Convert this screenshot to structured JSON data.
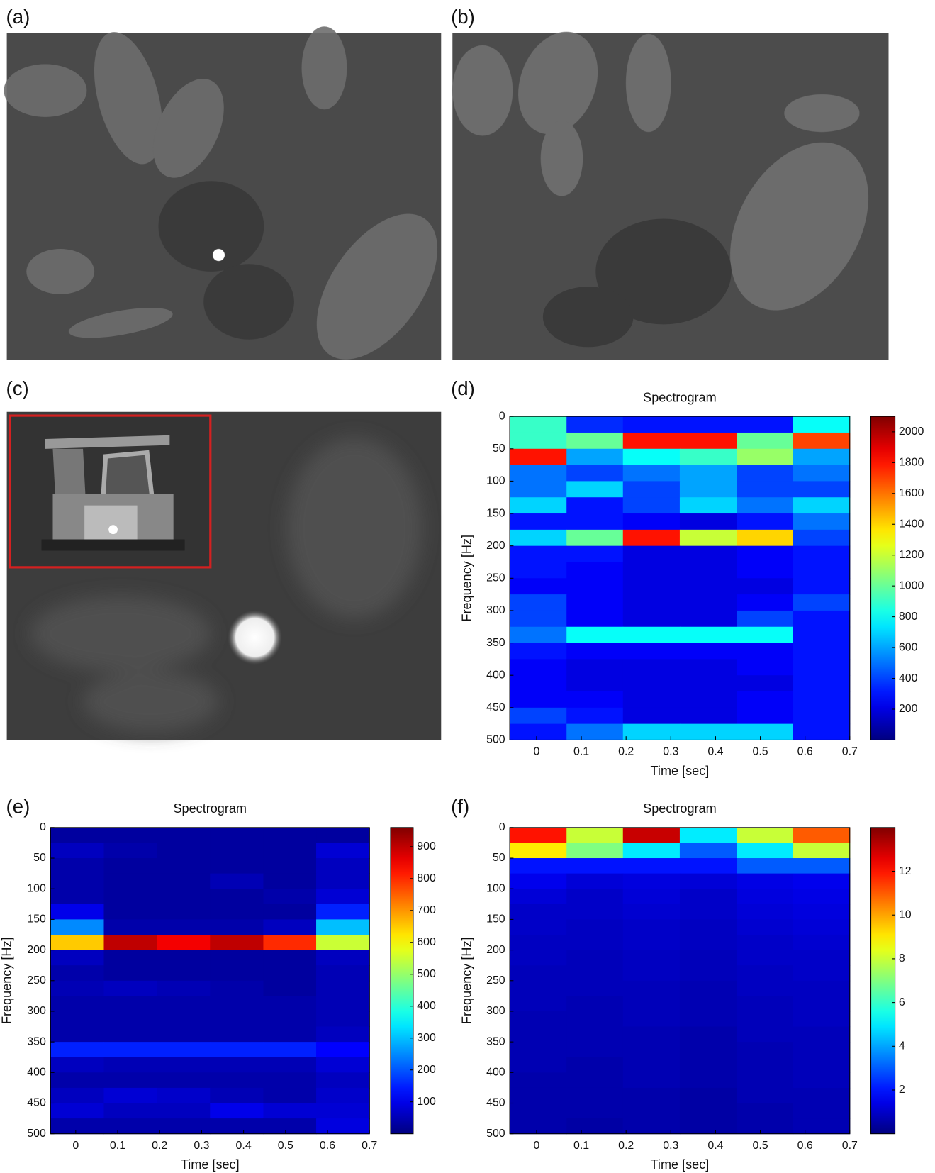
{
  "panels": [
    {
      "label": "(a)"
    },
    {
      "label": "(b)"
    },
    {
      "label": "(c)"
    }
  ],
  "chart_data": [
    {
      "type": "heatmap",
      "panel_label": "(d)",
      "title": "Spectrogram",
      "xlabel": "Time [sec]",
      "ylabel": "Frequency [Hz]",
      "x_bins": [
        -0.06,
        0.067,
        0.193,
        0.32,
        0.447,
        0.573,
        0.7
      ],
      "y_bins": [
        0,
        25,
        50,
        75,
        100,
        125,
        150,
        175,
        200,
        225,
        250,
        275,
        300,
        325,
        350,
        375,
        400,
        425,
        450,
        475,
        500
      ],
      "z": [
        [
          900,
          350,
          300,
          300,
          300,
          800
        ],
        [
          900,
          1000,
          1800,
          1800,
          1000,
          1700
        ],
        [
          1800,
          600,
          800,
          900,
          1100,
          600
        ],
        [
          500,
          400,
          500,
          600,
          400,
          500
        ],
        [
          500,
          700,
          400,
          600,
          400,
          400
        ],
        [
          700,
          300,
          400,
          700,
          500,
          700
        ],
        [
          300,
          300,
          250,
          200,
          300,
          500
        ],
        [
          700,
          1000,
          1800,
          1200,
          1400,
          400
        ],
        [
          300,
          300,
          200,
          200,
          250,
          300
        ],
        [
          300,
          250,
          200,
          200,
          250,
          300
        ],
        [
          250,
          250,
          200,
          200,
          200,
          300
        ],
        [
          400,
          250,
          200,
          200,
          250,
          400
        ],
        [
          400,
          250,
          200,
          200,
          400,
          300
        ],
        [
          500,
          800,
          800,
          800,
          800,
          300
        ],
        [
          300,
          250,
          250,
          250,
          250,
          300
        ],
        [
          250,
          200,
          200,
          200,
          250,
          300
        ],
        [
          250,
          200,
          200,
          200,
          200,
          300
        ],
        [
          250,
          250,
          200,
          200,
          250,
          300
        ],
        [
          400,
          300,
          200,
          200,
          250,
          300
        ],
        [
          300,
          500,
          700,
          700,
          700,
          300
        ]
      ],
      "xlim": [
        -0.06,
        0.7
      ],
      "ylim": [
        0,
        500
      ],
      "yaxis_reversed": true,
      "xticks": [
        0,
        0.1,
        0.2,
        0.3,
        0.4,
        0.5,
        0.6,
        0.7
      ],
      "yticks": [
        0,
        50,
        100,
        150,
        200,
        250,
        300,
        350,
        400,
        450,
        500
      ],
      "colormap": "jet",
      "zlim": [
        0,
        2100
      ],
      "colorbar_ticks": [
        200,
        400,
        600,
        800,
        1000,
        1200,
        1400,
        1600,
        1800,
        2000
      ]
    },
    {
      "type": "heatmap",
      "panel_label": "(e)",
      "title": "Spectrogram",
      "xlabel": "Time [sec]",
      "ylabel": "Frequency [Hz]",
      "x_bins": [
        -0.06,
        0.067,
        0.193,
        0.32,
        0.447,
        0.573,
        0.7
      ],
      "y_bins": [
        0,
        25,
        50,
        75,
        100,
        125,
        150,
        175,
        200,
        225,
        250,
        275,
        300,
        325,
        350,
        375,
        400,
        425,
        450,
        475,
        500
      ],
      "z": [
        [
          30,
          30,
          30,
          30,
          30,
          30
        ],
        [
          60,
          40,
          30,
          30,
          30,
          80
        ],
        [
          40,
          30,
          30,
          30,
          30,
          60
        ],
        [
          40,
          30,
          30,
          50,
          30,
          60
        ],
        [
          40,
          30,
          30,
          30,
          40,
          80
        ],
        [
          100,
          30,
          30,
          30,
          30,
          150
        ],
        [
          250,
          40,
          40,
          40,
          60,
          300
        ],
        [
          650,
          900,
          850,
          900,
          800,
          550
        ],
        [
          60,
          30,
          30,
          30,
          30,
          60
        ],
        [
          40,
          30,
          30,
          30,
          30,
          50
        ],
        [
          50,
          60,
          50,
          40,
          30,
          50
        ],
        [
          40,
          40,
          40,
          40,
          40,
          50
        ],
        [
          40,
          40,
          40,
          40,
          40,
          50
        ],
        [
          40,
          40,
          40,
          40,
          40,
          60
        ],
        [
          150,
          150,
          150,
          150,
          150,
          120
        ],
        [
          60,
          50,
          50,
          50,
          50,
          80
        ],
        [
          40,
          40,
          40,
          40,
          40,
          60
        ],
        [
          60,
          80,
          70,
          50,
          40,
          70
        ],
        [
          80,
          60,
          60,
          100,
          80,
          80
        ],
        [
          40,
          40,
          40,
          40,
          40,
          90
        ]
      ],
      "xlim": [
        -0.06,
        0.7
      ],
      "ylim": [
        0,
        500
      ],
      "yaxis_reversed": true,
      "xticks": [
        0,
        0.1,
        0.2,
        0.3,
        0.4,
        0.5,
        0.6,
        0.7
      ],
      "yticks": [
        0,
        50,
        100,
        150,
        200,
        250,
        300,
        350,
        400,
        450,
        500
      ],
      "colormap": "jet",
      "zlim": [
        0,
        960
      ],
      "colorbar_ticks": [
        100,
        200,
        300,
        400,
        500,
        600,
        700,
        800,
        900
      ]
    },
    {
      "type": "heatmap",
      "panel_label": "(f)",
      "title": "Spectrogram",
      "xlabel": "Time [sec]",
      "ylabel": "Frequency [Hz]",
      "x_bins": [
        -0.06,
        0.067,
        0.193,
        0.32,
        0.447,
        0.573,
        0.7
      ],
      "y_bins": [
        0,
        25,
        50,
        75,
        100,
        125,
        150,
        175,
        200,
        225,
        250,
        275,
        300,
        325,
        350,
        375,
        400,
        425,
        450,
        475,
        500
      ],
      "z": [
        [
          12,
          8,
          13,
          5,
          8,
          11
        ],
        [
          9,
          7,
          5,
          3,
          5,
          8
        ],
        [
          2,
          2,
          2,
          2,
          3,
          3
        ],
        [
          1.5,
          1.2,
          1.3,
          1.2,
          1.4,
          1.5
        ],
        [
          1.2,
          1,
          1.2,
          1,
          1.3,
          1.4
        ],
        [
          1,
          1,
          1.1,
          1,
          1.2,
          1.3
        ],
        [
          1,
          0.9,
          1,
          0.9,
          1.1,
          1.2
        ],
        [
          0.9,
          0.9,
          1,
          0.9,
          1,
          1.1
        ],
        [
          0.9,
          0.8,
          0.9,
          0.8,
          1,
          1
        ],
        [
          0.8,
          0.8,
          0.9,
          0.8,
          0.9,
          1
        ],
        [
          0.8,
          0.8,
          0.8,
          0.7,
          0.9,
          0.9
        ],
        [
          0.8,
          0.7,
          0.8,
          0.7,
          0.8,
          0.9
        ],
        [
          0.7,
          0.7,
          0.8,
          0.7,
          0.8,
          0.9
        ],
        [
          0.7,
          0.7,
          0.7,
          0.6,
          0.8,
          0.8
        ],
        [
          0.7,
          0.7,
          0.7,
          0.6,
          0.7,
          0.8
        ],
        [
          0.7,
          0.6,
          0.7,
          0.6,
          0.7,
          0.8
        ],
        [
          0.6,
          0.6,
          0.7,
          0.6,
          0.7,
          0.8
        ],
        [
          0.6,
          0.6,
          0.6,
          0.5,
          0.7,
          0.7
        ],
        [
          0.6,
          0.6,
          0.6,
          0.5,
          0.6,
          0.7
        ],
        [
          0.6,
          0.5,
          0.6,
          0.5,
          0.6,
          0.7
        ]
      ],
      "xlim": [
        -0.06,
        0.7
      ],
      "ylim": [
        0,
        500
      ],
      "yaxis_reversed": true,
      "xticks": [
        0,
        0.1,
        0.2,
        0.3,
        0.4,
        0.5,
        0.6,
        0.7
      ],
      "yticks": [
        0,
        50,
        100,
        150,
        200,
        250,
        300,
        350,
        400,
        450,
        500
      ],
      "colormap": "jet",
      "zlim": [
        0,
        14
      ],
      "colorbar_ticks": [
        2,
        4,
        6,
        8,
        10,
        12
      ]
    }
  ]
}
